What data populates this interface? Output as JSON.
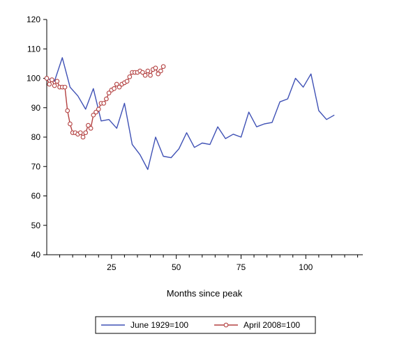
{
  "chart_data": {
    "type": "line",
    "title": "",
    "xlabel": "Months since peak",
    "ylabel": "",
    "xlim": [
      0,
      122
    ],
    "ylim": [
      40,
      120
    ],
    "xticks": [
      25,
      50,
      75,
      100
    ],
    "yticks": [
      40,
      50,
      60,
      70,
      80,
      90,
      100,
      110,
      120
    ],
    "grid": false,
    "legend": "bottom",
    "series": [
      {
        "name": "June 1929=100",
        "color": "#3f51b5",
        "marker": "none",
        "x": [
          0,
          3,
          6,
          9,
          12,
          15,
          18,
          21,
          24,
          27,
          30,
          33,
          36,
          39,
          42,
          45,
          48,
          51,
          54,
          57,
          60,
          63,
          66,
          69,
          72,
          75,
          78,
          81,
          84,
          87,
          90,
          93,
          96,
          99,
          102,
          105,
          108,
          111
        ],
        "values": [
          100,
          99,
          107,
          97,
          94,
          89.5,
          96.5,
          85.5,
          86,
          83,
          91.5,
          77.5,
          74,
          69,
          80,
          73.5,
          73,
          76,
          81.5,
          76.5,
          78,
          77.5,
          83.5,
          79.5,
          81,
          80,
          88.5,
          83.5,
          84.5,
          85,
          92,
          93,
          100,
          97,
          101.5,
          89,
          86,
          87.5
        ]
      },
      {
        "name": "April 2008=100",
        "color": "#b34141",
        "marker": "circle",
        "x": [
          0,
          1,
          2,
          3,
          4,
          5,
          6,
          7,
          8,
          9,
          10,
          11,
          12,
          13,
          14,
          15,
          16,
          17,
          18,
          19,
          20,
          21,
          22,
          23,
          24,
          25,
          26,
          27,
          28,
          29,
          30,
          31,
          32,
          33,
          34,
          35,
          36,
          37,
          38,
          39,
          40,
          41,
          42,
          43,
          44,
          45
        ],
        "values": [
          100,
          98,
          99.5,
          97.5,
          99,
          97,
          97,
          97,
          89,
          84.5,
          81.5,
          81.5,
          81,
          81.5,
          80,
          81.5,
          84,
          83,
          87.5,
          88.5,
          89.5,
          91.5,
          91.5,
          93,
          95,
          96,
          96.5,
          98,
          97,
          98,
          98.5,
          99,
          100.5,
          102,
          102,
          102,
          102.5,
          102,
          101,
          102.5,
          101,
          103,
          103.5,
          101.5,
          102.5,
          104
        ]
      }
    ]
  }
}
